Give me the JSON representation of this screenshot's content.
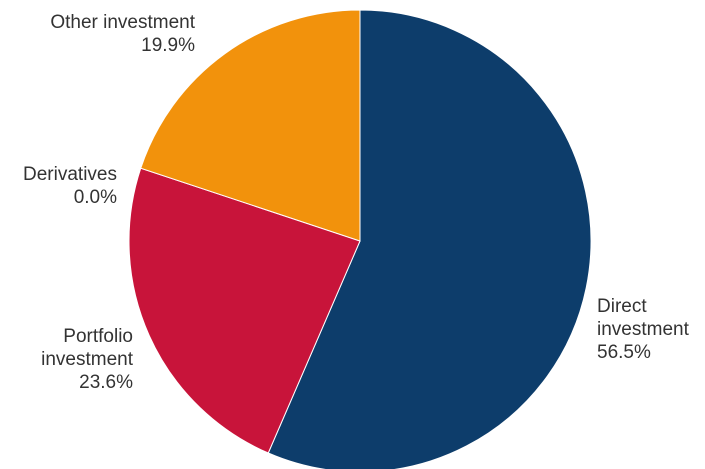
{
  "chart_data": {
    "type": "pie",
    "title": "",
    "start_angle_deg": 0,
    "direction": "clockwise",
    "slices": [
      {
        "name": "Direct investment",
        "label_lines": [
          "Direct",
          "investment",
          "56.5%"
        ],
        "value": 56.5,
        "value_label": "56.5%",
        "color": "#0d3d6b"
      },
      {
        "name": "Portfolio investment",
        "label_lines": [
          "Portfolio",
          "investment",
          "23.6%"
        ],
        "value": 23.6,
        "value_label": "23.6%",
        "color": "#c8143a"
      },
      {
        "name": "Derivatives",
        "label_lines": [
          "Derivatives",
          "0.0%"
        ],
        "value": 0.0,
        "value_label": "0.0%",
        "color": "#c8143a"
      },
      {
        "name": "Other investment",
        "label_lines": [
          "Other investment",
          "19.9%"
        ],
        "value": 19.9,
        "value_label": "19.9%",
        "color": "#f2920c"
      }
    ]
  }
}
